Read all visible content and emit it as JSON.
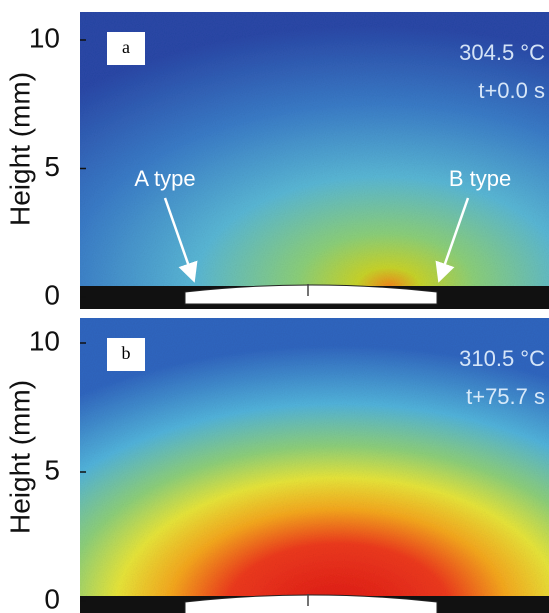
{
  "panels": [
    {
      "label": "a",
      "y_axis_label": "Height (mm)",
      "yticks": [
        0,
        5,
        10
      ],
      "temperature": "304.5 °C",
      "time": "t+0.0 s",
      "annotations": [
        "A type",
        "B type"
      ]
    },
    {
      "label": "b",
      "y_axis_label": "Height (mm)",
      "yticks": [
        0,
        5,
        10
      ],
      "temperature": "310.5 °C",
      "time": "t+75.7 s",
      "annotations": []
    }
  ]
}
